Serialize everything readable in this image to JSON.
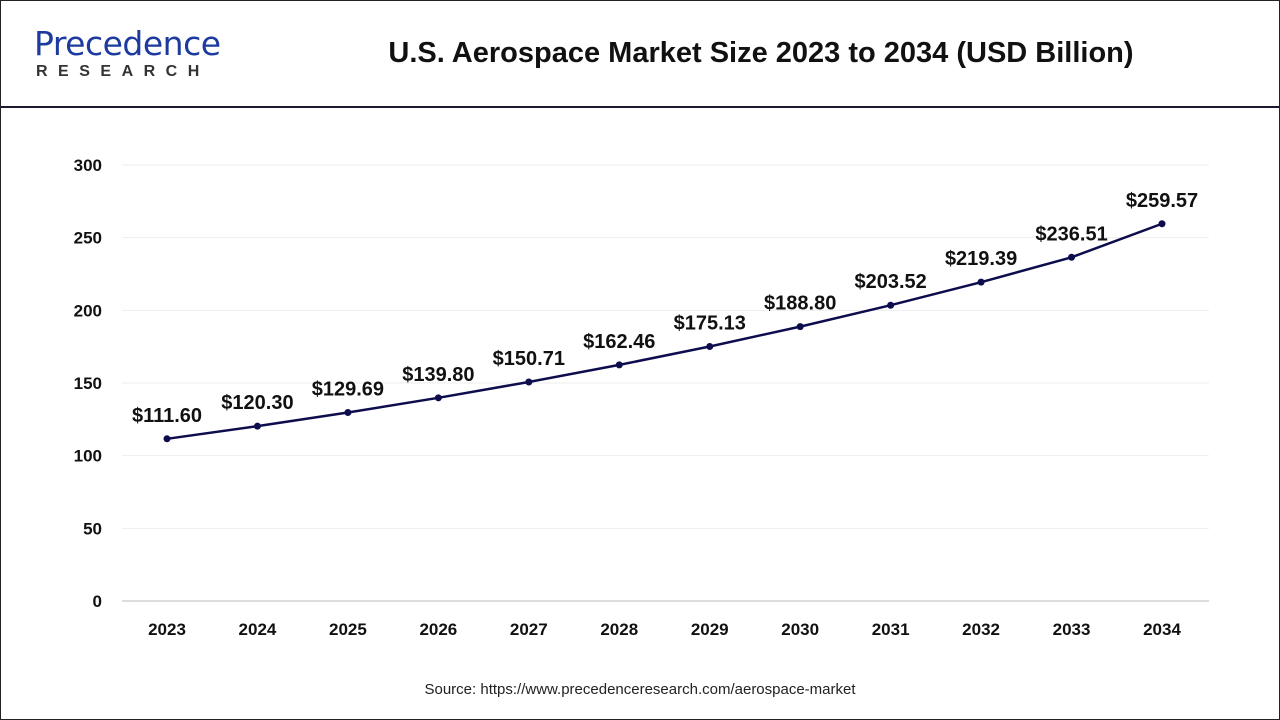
{
  "header": {
    "logo_main": "Precedence",
    "logo_sub": "RESEARCH",
    "title": "U.S. Aerospace Market Size 2023 to 2034 (USD Billion)"
  },
  "source": "Source: https://www.precedenceresearch.com/aerospace-market",
  "chart_data": {
    "type": "line",
    "title": "U.S. Aerospace Market Size 2023 to 2034 (USD Billion)",
    "categories": [
      "2023",
      "2024",
      "2025",
      "2026",
      "2027",
      "2028",
      "2029",
      "2030",
      "2031",
      "2032",
      "2033",
      "2034"
    ],
    "values": [
      111.6,
      120.3,
      129.69,
      139.8,
      150.71,
      162.46,
      175.13,
      188.8,
      203.52,
      219.39,
      236.51,
      259.57
    ],
    "data_labels": [
      "$111.60",
      "$120.30",
      "$129.69",
      "$139.80",
      "$150.71",
      "$162.46",
      "$175.13",
      "$188.80",
      "$203.52",
      "$219.39",
      "$236.51",
      "$259.57"
    ],
    "yticks": [
      "0",
      "50",
      "100",
      "150",
      "200",
      "250",
      "300"
    ],
    "ylim": [
      0,
      300
    ],
    "grid": true,
    "line_color": "#0d0d4d"
  }
}
